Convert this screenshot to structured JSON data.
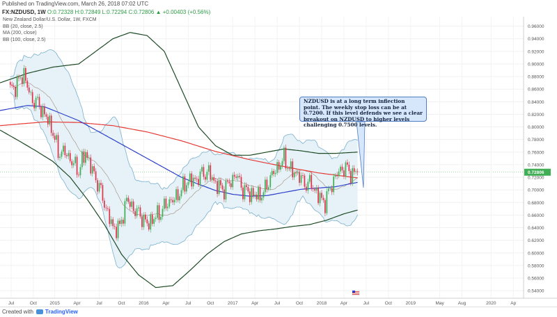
{
  "header": {
    "published": "Published on TradingView.com, March 26, 2018 07:02 UTC",
    "symbol": "FX:NZDUSD, 1W",
    "ohlc": "O:0.72328 H:0.72849 L:0.72294 C:0.72806",
    "change": "▲ +0.00403 (+0.56%)"
  },
  "legend": {
    "name": "New Zealand Dollar/U.S. Dollar, 1W, FXCM",
    "ind1": "BB (20, close, 2.5)",
    "ind2": "MA (200, close)",
    "ind3": "BB (100, close, 2.5)"
  },
  "annotation": {
    "text": "NZDUSD is at a long term inflection point. The weekly stop loss can be at 0.7200. If this level defends we see a clear breakout on NZDUSD to higher levels challenging 0.7500 levels."
  },
  "footer": {
    "created_with": "Created with",
    "brand": "TradingView"
  },
  "colors": {
    "up": "#3fae55",
    "down": "#e0334b",
    "ma200": "#e53935",
    "ma_blue": "#2c3fc9",
    "bb100": "#1d4a24",
    "bb20": "#7ab0cc",
    "bb20_fill": "#e6f2f8",
    "price_tag": "#3fae55"
  },
  "chart_data": {
    "type": "candlestick",
    "title": "New Zealand Dollar/U.S. Dollar, 1W, FXCM",
    "y_ticks": [
      "0.96000",
      "0.94000",
      "0.92000",
      "0.90000",
      "0.88000",
      "0.86000",
      "0.84000",
      "0.82000",
      "0.80000",
      "0.78000",
      "0.76000",
      "0.74000",
      "0.72000",
      "0.70000",
      "0.68000",
      "0.66000",
      "0.64000",
      "0.62000",
      "0.60000",
      "0.58000",
      "0.56000",
      "0.54000"
    ],
    "y_tick_values": [
      0.96,
      0.94,
      0.92,
      0.9,
      0.88,
      0.86,
      0.84,
      0.82,
      0.8,
      0.78,
      0.76,
      0.74,
      0.72,
      0.7,
      0.68,
      0.66,
      0.64,
      0.62,
      0.6,
      0.58,
      0.56,
      0.54
    ],
    "ylim": [
      0.528,
      0.975
    ],
    "last_price": 0.72806,
    "last_price_label": "0.72806",
    "x_ticks": [
      "Jul",
      "Oct",
      "2015",
      "Apr",
      "Jul",
      "Oct",
      "2016",
      "Apr",
      "Jul",
      "Oct",
      "2017",
      "Apr",
      "Jul",
      "Oct",
      "2018",
      "Apr",
      "Jul",
      "Oct",
      "2019",
      "May",
      "Aug",
      "2020",
      "Ap"
    ],
    "x_tick_positions": [
      0.5,
      13.5,
      26,
      39,
      52,
      65,
      78,
      91,
      104,
      117,
      130,
      143,
      156,
      169,
      182,
      195,
      208,
      221,
      234,
      251,
      264,
      281,
      294
    ],
    "x_range": [
      -6,
      300
    ],
    "price_anchors": [
      [
        0,
        0.858
      ],
      [
        4,
        0.868
      ],
      [
        8,
        0.885
      ],
      [
        12,
        0.845
      ],
      [
        16,
        0.838
      ],
      [
        20,
        0.82
      ],
      [
        24,
        0.8
      ],
      [
        28,
        0.76
      ],
      [
        32,
        0.76
      ],
      [
        36,
        0.745
      ],
      [
        40,
        0.73
      ],
      [
        44,
        0.76
      ],
      [
        48,
        0.73
      ],
      [
        52,
        0.705
      ],
      [
        56,
        0.67
      ],
      [
        60,
        0.64
      ],
      [
        64,
        0.64
      ],
      [
        68,
        0.685
      ],
      [
        72,
        0.67
      ],
      [
        76,
        0.66
      ],
      [
        80,
        0.645
      ],
      [
        84,
        0.655
      ],
      [
        88,
        0.665
      ],
      [
        92,
        0.68
      ],
      [
        96,
        0.685
      ],
      [
        100,
        0.7
      ],
      [
        104,
        0.715
      ],
      [
        108,
        0.715
      ],
      [
        112,
        0.725
      ],
      [
        116,
        0.728
      ],
      [
        120,
        0.71
      ],
      [
        124,
        0.7
      ],
      [
        128,
        0.71
      ],
      [
        132,
        0.725
      ],
      [
        136,
        0.7
      ],
      [
        140,
        0.695
      ],
      [
        144,
        0.69
      ],
      [
        148,
        0.695
      ],
      [
        152,
        0.72
      ],
      [
        156,
        0.735
      ],
      [
        160,
        0.75
      ],
      [
        164,
        0.73
      ],
      [
        168,
        0.725
      ],
      [
        172,
        0.71
      ],
      [
        176,
        0.71
      ],
      [
        180,
        0.69
      ],
      [
        184,
        0.68
      ],
      [
        188,
        0.71
      ],
      [
        192,
        0.73
      ],
      [
        196,
        0.735
      ],
      [
        200,
        0.725
      ],
      [
        203,
        0.72806
      ]
    ],
    "ma200_anchors": [
      [
        -6,
        0.802
      ],
      [
        20,
        0.808
      ],
      [
        40,
        0.807
      ],
      [
        60,
        0.802
      ],
      [
        80,
        0.792
      ],
      [
        100,
        0.778
      ],
      [
        120,
        0.761
      ],
      [
        140,
        0.748
      ],
      [
        160,
        0.737
      ],
      [
        180,
        0.727
      ],
      [
        203,
        0.719
      ]
    ],
    "blue_ma_anchors": [
      [
        -6,
        0.826
      ],
      [
        10,
        0.834
      ],
      [
        20,
        0.832
      ],
      [
        40,
        0.81
      ],
      [
        60,
        0.78
      ],
      [
        80,
        0.75
      ],
      [
        100,
        0.72
      ],
      [
        110,
        0.709
      ],
      [
        120,
        0.699
      ],
      [
        130,
        0.693
      ],
      [
        140,
        0.69
      ],
      [
        150,
        0.691
      ],
      [
        160,
        0.696
      ],
      [
        170,
        0.701
      ],
      [
        180,
        0.703
      ],
      [
        190,
        0.705
      ],
      [
        203,
        0.712
      ]
    ],
    "bb100_upper_anchors": [
      [
        -6,
        0.87
      ],
      [
        10,
        0.885
      ],
      [
        25,
        0.895
      ],
      [
        40,
        0.9
      ],
      [
        50,
        0.92
      ],
      [
        60,
        0.94
      ],
      [
        70,
        0.95
      ],
      [
        80,
        0.945
      ],
      [
        90,
        0.92
      ],
      [
        100,
        0.86
      ],
      [
        110,
        0.8
      ],
      [
        120,
        0.77
      ],
      [
        130,
        0.755
      ],
      [
        140,
        0.755
      ],
      [
        150,
        0.76
      ],
      [
        160,
        0.765
      ],
      [
        170,
        0.762
      ],
      [
        180,
        0.758
      ],
      [
        190,
        0.758
      ],
      [
        203,
        0.76
      ]
    ],
    "bb100_lower_anchors": [
      [
        -6,
        0.795
      ],
      [
        5,
        0.778
      ],
      [
        15,
        0.762
      ],
      [
        25,
        0.745
      ],
      [
        35,
        0.72
      ],
      [
        45,
        0.685
      ],
      [
        55,
        0.645
      ],
      [
        65,
        0.598
      ],
      [
        75,
        0.565
      ],
      [
        85,
        0.545
      ],
      [
        95,
        0.548
      ],
      [
        105,
        0.572
      ],
      [
        115,
        0.598
      ],
      [
        125,
        0.618
      ],
      [
        135,
        0.63
      ],
      [
        145,
        0.635
      ],
      [
        155,
        0.638
      ],
      [
        165,
        0.642
      ],
      [
        175,
        0.645
      ],
      [
        185,
        0.652
      ],
      [
        195,
        0.662
      ],
      [
        203,
        0.668
      ]
    ],
    "bb20_offset": 0.035
  }
}
